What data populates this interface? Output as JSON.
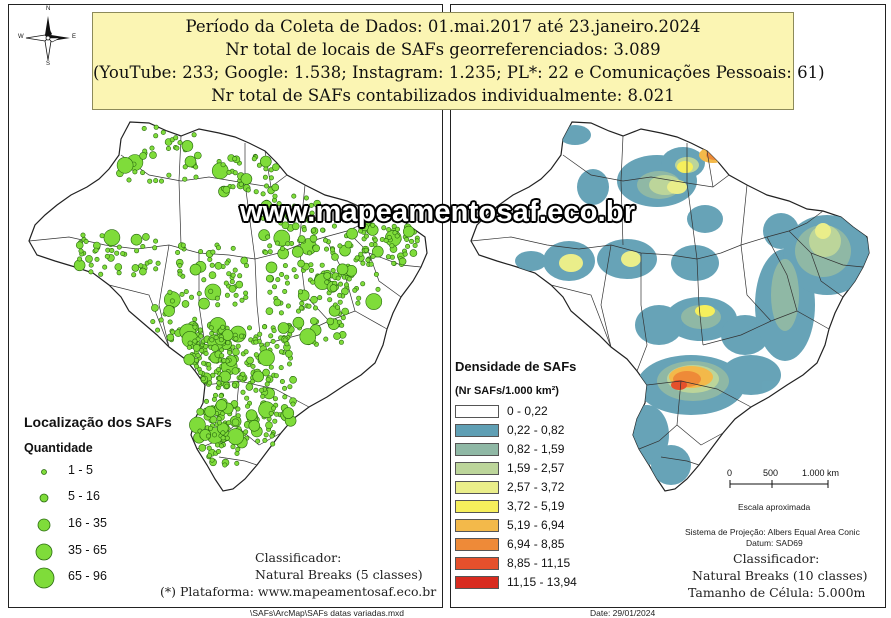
{
  "info_box": {
    "line1": "Período da Coleta de Dados: 01.mai.2017 até 23.janeiro.2024",
    "line2": "Nr total de locais de SAFs georreferenciados: 3.089",
    "line3": "(YouTube: 233; Google: 1.538; Instagram: 1.235; PL*: 22 e Comunicações Pessoais: 61)",
    "line4": "Nr total de SAFs contabilizados individualmente: 8.021"
  },
  "watermark": "www.mapeamentosaf.eco.br",
  "compass": {
    "n": "N",
    "s": "S",
    "e": "E",
    "w": "W"
  },
  "left_map": {
    "legend_title": "Localização dos SAFs",
    "legend_subtitle": "Quantidade",
    "classes": [
      "1 - 5",
      "5 - 16",
      "16 - 35",
      "35 - 65",
      "65 - 96"
    ],
    "point_color": "#7fdc3a",
    "classifier_label": "Classificador:",
    "classifier_value": "Natural Breaks (5 classes)",
    "platform_note": "(*)  Plataforma: www.mapeamentosaf.eco.br"
  },
  "right_map": {
    "legend_title": "Densidade de SAFs",
    "legend_unit": "(Nr SAFs/1.000 km²)",
    "classes": [
      {
        "label": "0 - 0,22",
        "color": "#ffffff"
      },
      {
        "label": "0,22 - 0,82",
        "color": "#5f9fb4"
      },
      {
        "label": "0,82 - 1,59",
        "color": "#8fb8a5"
      },
      {
        "label": "1,59 - 2,57",
        "color": "#bcd59a"
      },
      {
        "label": "2,57 - 3,72",
        "color": "#eaee8a"
      },
      {
        "label": "3,72 - 5,19",
        "color": "#f6ef5c"
      },
      {
        "label": "5,19 - 6,94",
        "color": "#f3b94a"
      },
      {
        "label": "6,94 - 8,85",
        "color": "#ee8a38"
      },
      {
        "label": "8,85 - 11,15",
        "color": "#e5502c"
      },
      {
        "label": "11,15 - 13,94",
        "color": "#d82b1f"
      }
    ],
    "scale_ticks": [
      "0",
      "500",
      "1.000 km"
    ],
    "scale_caption": "Escala aproximada",
    "projection_line1": "Sistema de Projeção: Albers Equal Area Conic",
    "projection_line2": "Datum: SAD69",
    "classifier_label": "Classificador:",
    "classifier_value": "Natural Breaks (10 classes)",
    "cell_size": "Tamanho de Célula: 5.000m"
  },
  "footer": {
    "left": "\\SAFs\\ArcMap\\SAFs datas variadas.mxd",
    "right": "Date: 29/01/2024"
  }
}
